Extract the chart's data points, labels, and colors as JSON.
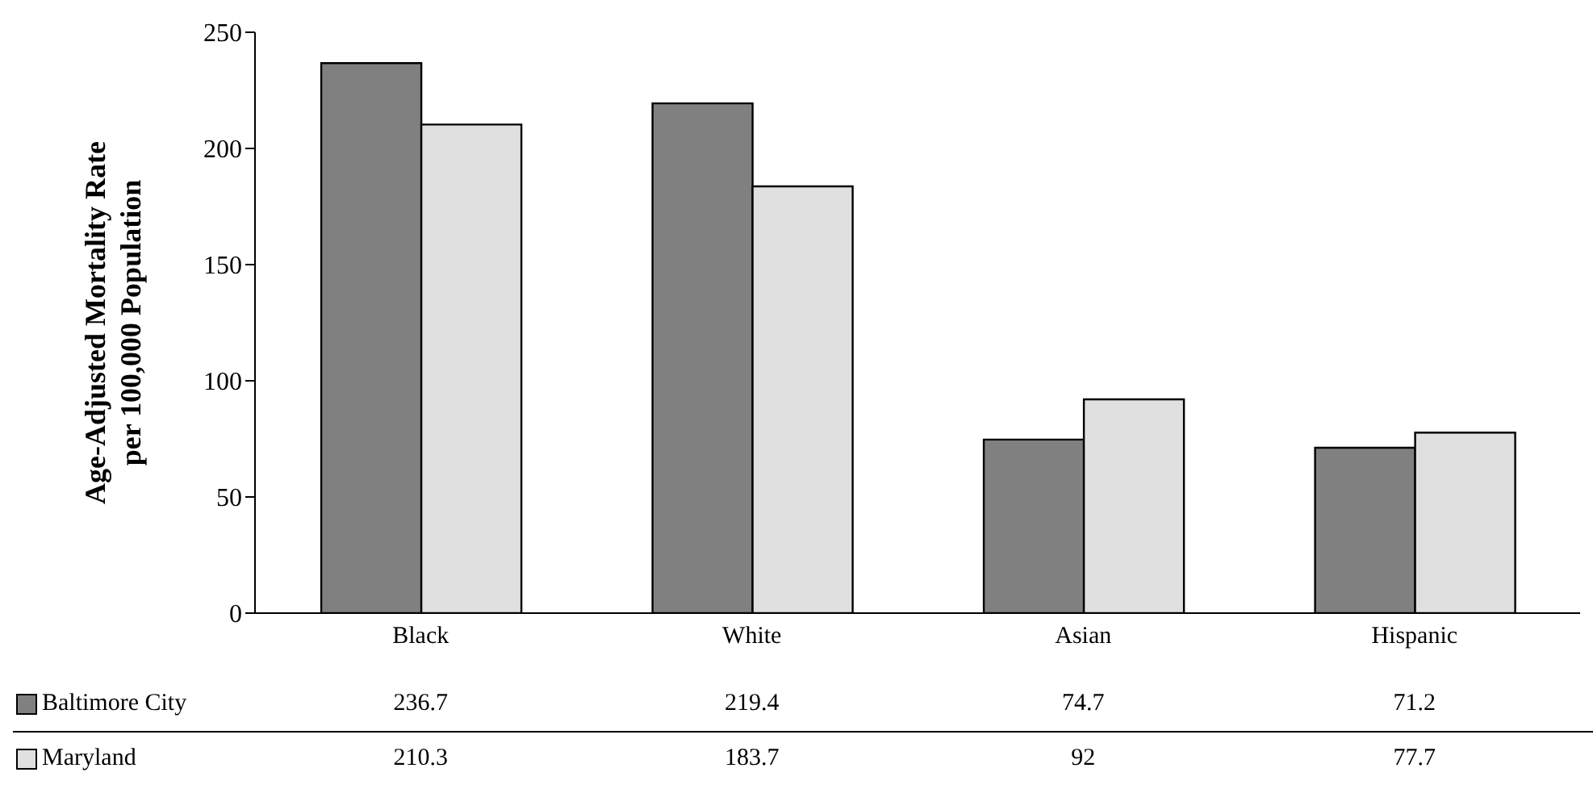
{
  "chart_data": {
    "type": "bar",
    "ylabel": "Age-Adjusted Mortality Rate\nper 100,000 Population",
    "categories": [
      "Black",
      "White",
      "Asian",
      "Hispanic"
    ],
    "series": [
      {
        "name": "Baltimore City",
        "color": "#808080",
        "values": [
          236.7,
          219.4,
          74.7,
          71.2
        ]
      },
      {
        "name": "Maryland",
        "color": "#e0e0e0",
        "values": [
          210.3,
          183.7,
          92,
          77.7
        ]
      }
    ],
    "ylim": [
      0,
      250
    ],
    "yticks": [
      0,
      50,
      100,
      150,
      200,
      250
    ],
    "legend": "bottom left",
    "data_labels": true
  }
}
